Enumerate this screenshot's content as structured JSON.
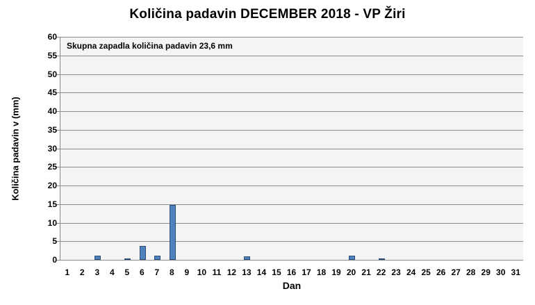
{
  "chart_data": {
    "type": "bar",
    "title": "Količina padavin DECEMBER 2018 - VP Žiri",
    "xlabel": "Dan",
    "ylabel": "Količina padavin v  (mm)",
    "annotation": "Skupna zapadla količina padavin 23,6 mm",
    "ylim": [
      0,
      60
    ],
    "yticks": [
      0,
      5,
      10,
      15,
      20,
      25,
      30,
      35,
      40,
      45,
      50,
      55,
      60
    ],
    "grid": true,
    "legend": "none",
    "bar_color": "#4f81bd",
    "categories": [
      "1",
      "2",
      "3",
      "4",
      "5",
      "6",
      "7",
      "8",
      "9",
      "10",
      "11",
      "12",
      "13",
      "14",
      "15",
      "16",
      "17",
      "18",
      "19",
      "20",
      "21",
      "22",
      "23",
      "24",
      "25",
      "26",
      "27",
      "28",
      "29",
      "30",
      "31"
    ],
    "values": [
      0,
      0,
      1.2,
      0,
      0.2,
      3.8,
      1.2,
      14.8,
      0,
      0,
      0,
      0,
      1.0,
      0,
      0,
      0,
      0,
      0,
      0,
      1.2,
      0,
      0.2,
      0,
      0,
      0,
      0,
      0,
      0,
      0,
      0,
      0
    ],
    "total_mm": 23.6
  }
}
